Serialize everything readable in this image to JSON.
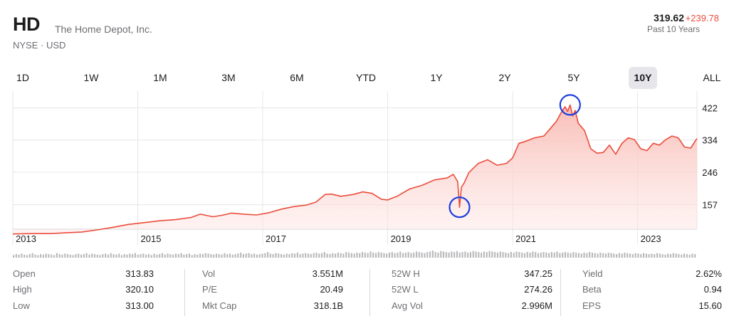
{
  "header": {
    "ticker": "HD",
    "company": "The Home Depot, Inc.",
    "exchange": "NYSE · USD",
    "price": "319.62",
    "change": "+239.78",
    "period": "Past 10 Years"
  },
  "range_tabs": [
    {
      "label": "1D",
      "selected": false
    },
    {
      "label": "1W",
      "selected": false
    },
    {
      "label": "1M",
      "selected": false
    },
    {
      "label": "3M",
      "selected": false
    },
    {
      "label": "6M",
      "selected": false
    },
    {
      "label": "YTD",
      "selected": false
    },
    {
      "label": "1Y",
      "selected": false
    },
    {
      "label": "2Y",
      "selected": false
    },
    {
      "label": "5Y",
      "selected": false
    },
    {
      "label": "10Y",
      "selected": true
    },
    {
      "label": "ALL",
      "selected": false
    }
  ],
  "colors": {
    "line": "#eb4d3d",
    "fill_top": "#f9b9b2",
    "annotation_circle": "#1d3fe0",
    "grid": "#e6e6e6",
    "volume_bar": "#b8b8bc"
  },
  "chart_data": {
    "type": "area",
    "title": "",
    "xlabel": "",
    "ylabel": "",
    "x_ticks": [
      "2013",
      "2015",
      "2017",
      "2019",
      "2021",
      "2023"
    ],
    "y_ticks": [
      "422",
      "334",
      "246",
      "157"
    ],
    "ylim": [
      90,
      460
    ],
    "xlim": [
      2013.0,
      2023.95
    ],
    "grid": true,
    "y_axis_position": "right",
    "series": [
      {
        "x": [
          2013.0,
          2013.3,
          2013.6,
          2013.85,
          2014.1,
          2014.35,
          2014.6,
          2014.85,
          2015.1,
          2015.35,
          2015.6,
          2015.85,
          2016.0,
          2016.2,
          2016.35,
          2016.5,
          2016.7,
          2016.9,
          2017.1,
          2017.3,
          2017.5,
          2017.7,
          2017.85,
          2018.0,
          2018.1,
          2018.25,
          2018.45,
          2018.6,
          2018.75,
          2018.9,
          2019.0,
          2019.15,
          2019.35,
          2019.55,
          2019.75,
          2019.95,
          2020.05,
          2020.12,
          2020.15,
          2020.18,
          2020.22,
          2020.3,
          2020.45,
          2020.6,
          2020.75,
          2020.9,
          2021.0,
          2021.1,
          2021.2,
          2021.35,
          2021.5,
          2021.6,
          2021.7,
          2021.78,
          2021.84,
          2021.88,
          2021.92,
          2021.96,
          2022.0,
          2022.05,
          2022.15,
          2022.25,
          2022.35,
          2022.45,
          2022.55,
          2022.65,
          2022.75,
          2022.85,
          2022.95,
          2023.05,
          2023.15,
          2023.25,
          2023.35,
          2023.45,
          2023.55,
          2023.65,
          2023.75,
          2023.85,
          2023.95
        ],
        "values": [
          77,
          78,
          78,
          80,
          82,
          88,
          95,
          103,
          108,
          113,
          116,
          122,
          131,
          124,
          128,
          134,
          131,
          129,
          135,
          145,
          152,
          156,
          164,
          185,
          186,
          180,
          185,
          192,
          188,
          172,
          170,
          180,
          200,
          210,
          225,
          230,
          240,
          220,
          150,
          205,
          215,
          245,
          270,
          280,
          265,
          270,
          285,
          325,
          330,
          340,
          345,
          365,
          385,
          410,
          425,
          412,
          430,
          400,
          415,
          380,
          360,
          310,
          298,
          300,
          320,
          295,
          325,
          340,
          335,
          310,
          305,
          325,
          320,
          335,
          345,
          340,
          315,
          312,
          338
        ]
      }
    ]
  },
  "annotations": [
    {
      "name": "crash-low",
      "x": 2020.15,
      "y": 150
    },
    {
      "name": "all-time-high",
      "x": 2021.92,
      "y": 430
    }
  ],
  "volume": {
    "values": [
      5,
      7,
      6,
      8,
      6,
      5,
      7,
      9,
      6,
      5,
      7,
      6,
      8,
      7,
      6,
      5,
      9,
      7,
      6,
      8,
      7,
      6,
      5,
      7,
      8,
      6,
      7,
      9,
      6,
      8,
      7,
      6,
      5,
      7,
      8,
      6,
      9,
      7,
      6,
      8,
      5,
      7,
      6,
      8,
      7,
      9,
      6,
      7,
      8,
      6,
      7,
      5,
      8,
      6,
      7,
      9,
      6,
      8,
      7,
      6,
      8,
      7,
      9,
      6,
      7,
      8,
      5,
      7,
      6,
      8,
      7,
      9,
      8,
      7,
      6,
      8,
      7,
      6,
      9,
      7,
      8,
      6,
      7,
      8,
      10,
      7,
      8,
      9,
      7,
      8,
      6,
      7,
      8,
      9,
      11,
      8,
      7,
      9,
      8,
      7,
      6,
      8,
      7,
      9,
      8,
      10,
      7,
      8,
      9,
      8,
      7,
      9,
      10,
      8,
      9,
      11,
      8,
      7,
      9,
      8,
      10,
      9,
      8,
      11,
      10,
      9,
      8,
      10,
      9,
      11,
      10,
      9,
      12,
      10,
      9,
      11,
      10,
      9,
      8,
      10,
      11,
      9,
      10,
      12,
      9,
      10,
      11,
      9,
      10,
      12,
      11,
      10,
      9,
      11,
      12,
      14,
      11,
      10,
      13,
      12,
      11,
      10,
      12,
      11,
      13,
      10,
      11,
      12,
      10,
      11,
      13,
      12,
      11,
      10,
      12,
      11,
      13,
      12,
      11,
      10,
      12,
      11,
      10,
      9,
      11,
      10,
      12,
      11,
      10,
      9,
      11,
      10,
      12,
      11,
      9,
      10,
      11,
      10,
      9,
      11,
      10,
      12,
      9,
      10,
      11,
      10,
      9,
      11,
      10,
      9,
      8,
      10,
      9,
      11,
      10,
      9,
      8,
      10,
      9,
      8,
      10,
      9,
      8,
      7,
      9,
      8,
      10,
      9,
      8,
      7,
      9,
      8,
      7,
      9,
      8,
      7,
      8,
      7,
      9,
      8,
      7,
      6,
      8,
      7,
      9,
      8,
      7,
      6,
      8,
      7,
      6,
      8,
      7
    ]
  },
  "stats": [
    [
      {
        "label": "Open",
        "value": "313.83"
      },
      {
        "label": "High",
        "value": "320.10"
      },
      {
        "label": "Low",
        "value": "313.00"
      }
    ],
    [
      {
        "label": "Vol",
        "value": "3.551M"
      },
      {
        "label": "P/E",
        "value": "20.49"
      },
      {
        "label": "Mkt Cap",
        "value": "318.1B"
      }
    ],
    [
      {
        "label": "52W H",
        "value": "347.25"
      },
      {
        "label": "52W L",
        "value": "274.26"
      },
      {
        "label": "Avg Vol",
        "value": "2.996M"
      }
    ],
    [
      {
        "label": "Yield",
        "value": "2.62%"
      },
      {
        "label": "Beta",
        "value": "0.94"
      },
      {
        "label": "EPS",
        "value": "15.60"
      }
    ]
  ]
}
